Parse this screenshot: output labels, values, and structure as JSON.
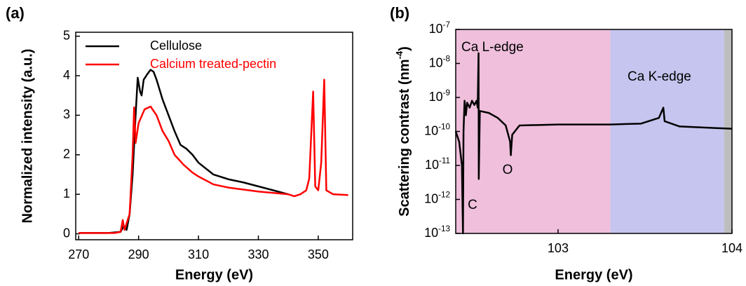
{
  "chart_data": [
    {
      "type": "line",
      "panel_label": "(a)",
      "x_label": "Energy (eV)",
      "y_label": "Normalized intensity (a.u.)",
      "xlim": [
        269,
        361.5
      ],
      "ylim": [
        -0.15,
        5.1
      ],
      "xticks": [
        270,
        290,
        310,
        330,
        350
      ],
      "yticks": [
        0,
        1,
        2,
        3,
        4,
        5
      ],
      "legend": "upper-left",
      "series": [
        {
          "name": "Cellulose",
          "color": "#000000",
          "x": [
            270,
            280,
            284,
            285,
            286,
            287,
            288,
            289,
            289.7,
            290.5,
            291,
            291.7,
            293,
            294,
            295,
            296,
            298,
            300,
            302,
            304,
            306,
            308,
            310,
            315,
            320,
            325,
            330,
            335,
            340
          ],
          "values": [
            0.02,
            0.02,
            0.05,
            0.2,
            0.1,
            0.5,
            1.5,
            3.0,
            3.95,
            3.6,
            3.5,
            3.9,
            4.05,
            4.15,
            4.1,
            3.9,
            3.4,
            3.0,
            2.6,
            2.25,
            2.15,
            2.0,
            1.8,
            1.5,
            1.38,
            1.3,
            1.2,
            1.1,
            1.0
          ]
        },
        {
          "name": "Calcium treated-pectin",
          "color": "#ff0000",
          "x": [
            270,
            282,
            284,
            284.7,
            285.3,
            287,
            288,
            288.5,
            289,
            290,
            292,
            294,
            296,
            298,
            300,
            302,
            305,
            308,
            310,
            315,
            320,
            330,
            340,
            342,
            344,
            346,
            347,
            348.3,
            349,
            350,
            351,
            352,
            352.7,
            355,
            360
          ],
          "values": [
            0.02,
            0.02,
            0.05,
            0.35,
            0.1,
            0.5,
            2.0,
            3.2,
            2.3,
            2.8,
            3.15,
            3.22,
            3.0,
            2.6,
            2.35,
            2.0,
            1.75,
            1.55,
            1.45,
            1.25,
            1.17,
            1.07,
            1.0,
            0.95,
            1.0,
            1.1,
            1.4,
            3.6,
            1.2,
            1.1,
            1.8,
            3.9,
            1.1,
            1.0,
            0.98
          ]
        }
      ]
    },
    {
      "type": "line",
      "panel_label": "(b)",
      "x_label": "Energy (eV)",
      "y_label": "Scattering contrast (nm-4)",
      "xlog": true,
      "ylog": true,
      "xlim": [
        258,
        10000
      ],
      "ylim": [
        1e-13,
        1e-07
      ],
      "xticks": [
        {
          "value": 1000,
          "label": "103"
        },
        {
          "value": 10000,
          "label": "104"
        }
      ],
      "yticks": [
        {
          "value": 1e-13,
          "label": "10-13"
        },
        {
          "value": 1e-12,
          "label": "10-12"
        },
        {
          "value": 1e-11,
          "label": "10-11"
        },
        {
          "value": 1e-10,
          "label": "10-10"
        },
        {
          "value": 1e-09,
          "label": "10-9"
        },
        {
          "value": 1e-08,
          "label": "10-8"
        },
        {
          "value": 1e-07,
          "label": "10-7"
        }
      ],
      "regions": [
        {
          "from": 258,
          "to": 2000,
          "color": "#efbfdc"
        },
        {
          "from": 2000,
          "to": 9000,
          "color": "#c5c5ef"
        },
        {
          "from": 9000,
          "to": 10000,
          "color": "#bdbdbd"
        }
      ],
      "annotations": [
        "Ca L-edge",
        "Ca K-edge",
        "C",
        "O"
      ],
      "series": [
        {
          "color": "#000000",
          "x": [
            258,
            270,
            280,
            284,
            286,
            290,
            295,
            300,
            310,
            320,
            330,
            340,
            345,
            349,
            350,
            355,
            400,
            450,
            500,
            530,
            535,
            545,
            600,
            1000,
            2000,
            3000,
            3800,
            4030,
            4100,
            5000,
            10000
          ],
          "values": [
            1e-10,
            5e-11,
            1e-11,
            1e-13,
            1e-10,
            8e-10,
            3e-10,
            7e-10,
            5e-10,
            8e-10,
            6e-10,
            8e-10,
            5e-10,
            2e-08,
            4e-12,
            4e-10,
            3.5e-10,
            2.5e-10,
            1.5e-10,
            5e-11,
            2e-11,
            8e-11,
            1.5e-10,
            1.6e-10,
            1.6e-10,
            1.7e-10,
            2.5e-10,
            5e-10,
            2e-10,
            1.4e-10,
            1.2e-10
          ]
        }
      ]
    }
  ]
}
